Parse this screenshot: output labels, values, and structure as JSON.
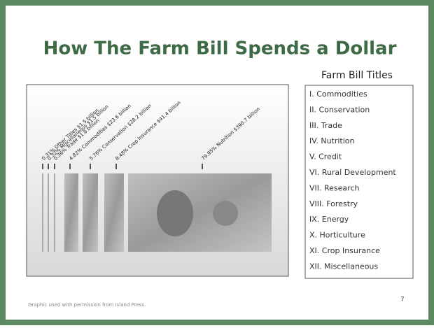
{
  "header": {
    "title": "How The Farm Bill Spends a Dollar"
  },
  "graphic": {
    "labels": [
      "0.31% Other Titles $1.5 billion",
      "0.32% Miscellaneous $1.5 billion",
      "0.36% Trade $1.8 billion",
      "4.82% Commodities $23.6 billion",
      "5.76% Conservation $28.2 billion",
      "8.48% Crop Insurance $41.4 billion",
      "79.95% Nutrition $390.7 billion"
    ]
  },
  "titles": {
    "heading": "Farm Bill Titles",
    "items": [
      "I. Commodities",
      "II. Conservation",
      "III. Trade",
      "IV. Nutrition",
      "V. Credit",
      "VI. Rural Development",
      "VII. Research",
      "VIII. Forestry",
      "IX. Energy",
      "X. Horticulture",
      "XI. Crop Insurance",
      "XII. Miscellaneous"
    ]
  },
  "footer": {
    "credit": "Graphic used with permission from Island Press.",
    "page": "7"
  }
}
